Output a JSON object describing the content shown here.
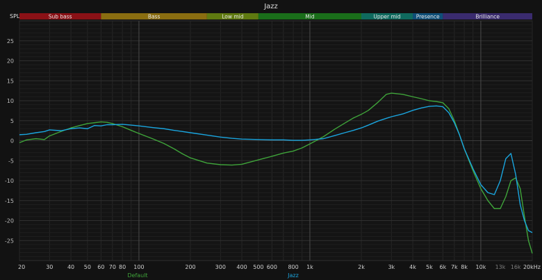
{
  "title": "Jazz",
  "chart_data": {
    "type": "line",
    "title": "Jazz",
    "ylabel": "SPL",
    "xscale": "log",
    "xlim": [
      20,
      20000
    ],
    "ylim": [
      -30,
      30
    ],
    "grid": true,
    "legend_position": "bottom",
    "y_ticks": [
      25,
      20,
      15,
      10,
      5,
      0,
      -5,
      -10,
      -15,
      -20,
      -25
    ],
    "x_ticks": [
      {
        "value": 20,
        "label": "20"
      },
      {
        "value": 30,
        "label": "30"
      },
      {
        "value": 40,
        "label": "40"
      },
      {
        "value": 50,
        "label": "50"
      },
      {
        "value": 60,
        "label": "60"
      },
      {
        "value": 70,
        "label": "70"
      },
      {
        "value": 80,
        "label": "80"
      },
      {
        "value": 100,
        "label": "100"
      },
      {
        "value": 200,
        "label": "200"
      },
      {
        "value": 300,
        "label": "300"
      },
      {
        "value": 400,
        "label": "400"
      },
      {
        "value": 500,
        "label": "500"
      },
      {
        "value": 600,
        "label": "600"
      },
      {
        "value": 800,
        "label": "800"
      },
      {
        "value": 1000,
        "label": "1k"
      },
      {
        "value": 2000,
        "label": "2k"
      },
      {
        "value": 3000,
        "label": "3k"
      },
      {
        "value": 4000,
        "label": "4k"
      },
      {
        "value": 5000,
        "label": "5k"
      },
      {
        "value": 6000,
        "label": "6k"
      },
      {
        "value": 7000,
        "label": "7k"
      },
      {
        "value": 8000,
        "label": "8k"
      },
      {
        "value": 10000,
        "label": "10k"
      },
      {
        "value": 13000,
        "label": "13k"
      },
      {
        "value": 16000,
        "label": "16k"
      },
      {
        "value": 20000,
        "label": "20kHz"
      }
    ],
    "bands": [
      {
        "name": "Sub bass",
        "from": 20,
        "to": 60,
        "color": "#8b1116"
      },
      {
        "name": "Bass",
        "from": 60,
        "to": 250,
        "color": "#8a6d10"
      },
      {
        "name": "Low mid",
        "from": 250,
        "to": 500,
        "color": "#5f7a10"
      },
      {
        "name": "Mid",
        "from": 500,
        "to": 2000,
        "color": "#1a6e1a"
      },
      {
        "name": "Upper mid",
        "from": 2000,
        "to": 4000,
        "color": "#0f6a5e"
      },
      {
        "name": "Presence",
        "from": 4000,
        "to": 6000,
        "color": "#0f4f78"
      },
      {
        "name": "Brilliance",
        "from": 6000,
        "to": 20000,
        "color": "#3a2b6e"
      }
    ],
    "series": [
      {
        "name": "Default",
        "color": "#3fa43a",
        "x": [
          20,
          22,
          25,
          28,
          30,
          35,
          40,
          45,
          50,
          55,
          60,
          65,
          70,
          80,
          90,
          100,
          120,
          140,
          160,
          180,
          200,
          250,
          300,
          350,
          400,
          500,
          600,
          700,
          800,
          900,
          1000,
          1200,
          1400,
          1600,
          1800,
          2000,
          2200,
          2500,
          2800,
          3000,
          3500,
          4000,
          4500,
          5000,
          5500,
          6000,
          6500,
          7000,
          7500,
          8000,
          9000,
          10000,
          11000,
          12000,
          13000,
          14000,
          15000,
          16000,
          17000,
          18000,
          19000,
          20000
        ],
        "y": [
          -0.5,
          0.2,
          0.5,
          0.3,
          1.2,
          2.3,
          3.2,
          3.8,
          4.3,
          4.5,
          4.7,
          4.6,
          4.3,
          3.5,
          2.6,
          1.8,
          0.5,
          -0.7,
          -2.0,
          -3.3,
          -4.3,
          -5.6,
          -6.0,
          -6.1,
          -5.9,
          -4.8,
          -3.9,
          -3.1,
          -2.6,
          -1.8,
          -0.8,
          1.0,
          2.9,
          4.4,
          5.7,
          6.6,
          7.6,
          9.6,
          11.6,
          11.9,
          11.6,
          11.0,
          10.5,
          10.0,
          9.8,
          9.5,
          8.0,
          5.0,
          1.5,
          -2.0,
          -7.5,
          -12.0,
          -15.0,
          -17.0,
          -17.0,
          -14.0,
          -10.0,
          -9.3,
          -12.0,
          -19.0,
          -25.0,
          -28.2
        ]
      },
      {
        "name": "Jazz",
        "color": "#1aa6e0",
        "x": [
          20,
          22,
          25,
          28,
          30,
          35,
          40,
          45,
          50,
          55,
          60,
          65,
          70,
          80,
          90,
          100,
          120,
          140,
          160,
          180,
          200,
          250,
          300,
          350,
          400,
          500,
          600,
          700,
          800,
          900,
          1000,
          1200,
          1400,
          1600,
          1800,
          2000,
          2200,
          2500,
          2800,
          3000,
          3500,
          4000,
          4500,
          5000,
          5500,
          6000,
          6500,
          7000,
          7500,
          8000,
          9000,
          10000,
          11000,
          12000,
          13000,
          14000,
          15000,
          16000,
          17000,
          18000,
          19000,
          20000
        ],
        "y": [
          1.5,
          1.6,
          2.0,
          2.3,
          2.7,
          2.5,
          3.0,
          3.2,
          3.0,
          3.8,
          3.7,
          4.0,
          4.0,
          4.1,
          3.9,
          3.7,
          3.3,
          3.0,
          2.6,
          2.3,
          2.0,
          1.4,
          0.9,
          0.6,
          0.4,
          0.3,
          0.2,
          0.2,
          0.1,
          0.1,
          0.2,
          0.5,
          1.3,
          2.0,
          2.6,
          3.2,
          3.9,
          4.9,
          5.6,
          6.0,
          6.7,
          7.6,
          8.2,
          8.6,
          8.7,
          8.5,
          7.0,
          4.5,
          1.5,
          -2.0,
          -7.0,
          -11.0,
          -13.0,
          -13.5,
          -10.0,
          -4.5,
          -3.2,
          -8.5,
          -16.0,
          -20.0,
          -22.5,
          -23.0
        ]
      }
    ]
  }
}
